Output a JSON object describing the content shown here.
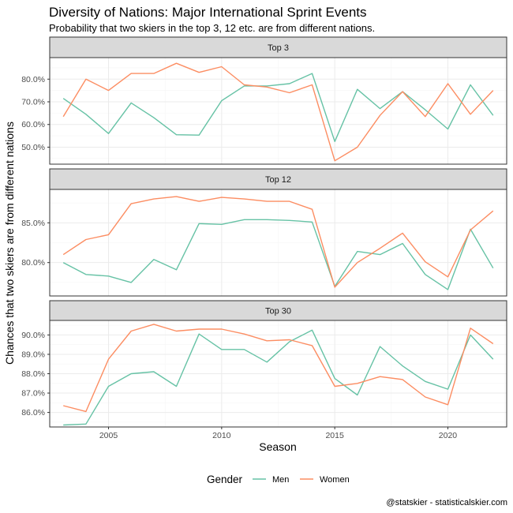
{
  "chart_data": {
    "type": "line",
    "title": "Diversity of Nations: Major International Sprint Events",
    "subtitle": "Probability that two skiers in the top 3, 12 etc. are from different nations.",
    "xlabel": "Season",
    "ylabel": "Chances that two skiers are from different nations",
    "caption": "@statskier - statisticalskier.com",
    "legend": {
      "title": "Gender",
      "position": "bottom"
    },
    "colors": {
      "Men": "#66c2a5",
      "Women": "#fc8d62"
    },
    "xlim": [
      2002.4,
      2022.6
    ],
    "x_ticks": [
      2005,
      2010,
      2015,
      2020
    ],
    "x_tick_labels": [
      "2005",
      "2010",
      "2015",
      "2020"
    ],
    "panels": [
      {
        "label": "Top 3",
        "ylim": [
          42.5,
          89.5
        ],
        "y_ticks": [
          50,
          60,
          70,
          80
        ],
        "y_tick_labels": [
          "50.0%",
          "60.0%",
          "70.0%",
          "80.0%"
        ],
        "x": [
          2003,
          2004,
          2005,
          2006,
          2007,
          2008,
          2009,
          2010,
          2011,
          2012,
          2013,
          2014,
          2015,
          2016,
          2017,
          2018,
          2019,
          2020,
          2021,
          2022
        ],
        "series": [
          {
            "name": "Men",
            "values": [
              71.5,
              64.5,
              56,
              69.5,
              63,
              55.5,
              55.3,
              70.5,
              77,
              77,
              78,
              82.5,
              52.5,
              75.5,
              67,
              74.5,
              66.5,
              58,
              77.5,
              64
            ]
          },
          {
            "name": "Women",
            "values": [
              63.5,
              80,
              75,
              82.5,
              82.5,
              87,
              83,
              85.5,
              77.5,
              76.5,
              74,
              77.5,
              44,
              50,
              64,
              74.5,
              63.5,
              78,
              64.5,
              75
            ]
          }
        ]
      },
      {
        "label": "Top 12",
        "ylim": [
          75.8,
          89.2
        ],
        "y_ticks": [
          80,
          85
        ],
        "y_tick_labels": [
          "80.0%",
          "85.0%"
        ],
        "x": [
          2003,
          2004,
          2005,
          2006,
          2007,
          2008,
          2009,
          2010,
          2011,
          2012,
          2013,
          2014,
          2015,
          2016,
          2017,
          2018,
          2019,
          2020,
          2021,
          2022
        ],
        "series": [
          {
            "name": "Men",
            "values": [
              80,
              78.5,
              78.3,
              77.5,
              80.4,
              79.1,
              84.9,
              84.8,
              85.4,
              85.4,
              85.3,
              85.1,
              77,
              81.4,
              81,
              82.4,
              78.5,
              76.6,
              84.2,
              79.3
            ]
          },
          {
            "name": "Women",
            "values": [
              81,
              82.9,
              83.5,
              87.4,
              88,
              88.3,
              87.7,
              88.2,
              88,
              87.7,
              87.7,
              86.7,
              76.9,
              80,
              81.8,
              83.7,
              80.1,
              78.2,
              84.1,
              86.5
            ]
          }
        ]
      },
      {
        "label": "Top 30",
        "ylim": [
          85.25,
          90.75
        ],
        "y_ticks": [
          86,
          87,
          88,
          89,
          90
        ],
        "y_tick_labels": [
          "86.0%",
          "87.0%",
          "88.0%",
          "89.0%",
          "90.0%"
        ],
        "x": [
          2003,
          2004,
          2005,
          2006,
          2007,
          2008,
          2009,
          2010,
          2011,
          2012,
          2013,
          2014,
          2015,
          2016,
          2017,
          2018,
          2019,
          2020,
          2021,
          2022
        ],
        "series": [
          {
            "name": "Men",
            "values": [
              85.35,
              85.4,
              87.35,
              88,
              88.1,
              87.35,
              90.05,
              89.25,
              89.25,
              88.6,
              89.65,
              90.25,
              87.75,
              86.9,
              89.4,
              88.4,
              87.6,
              87.2,
              90,
              88.75
            ]
          },
          {
            "name": "Women",
            "values": [
              86.35,
              86.05,
              88.75,
              90.2,
              90.55,
              90.2,
              90.3,
              90.3,
              90.05,
              89.7,
              89.75,
              89.45,
              87.35,
              87.5,
              87.85,
              87.7,
              86.8,
              86.4,
              90.35,
              89.55
            ]
          }
        ]
      }
    ]
  }
}
